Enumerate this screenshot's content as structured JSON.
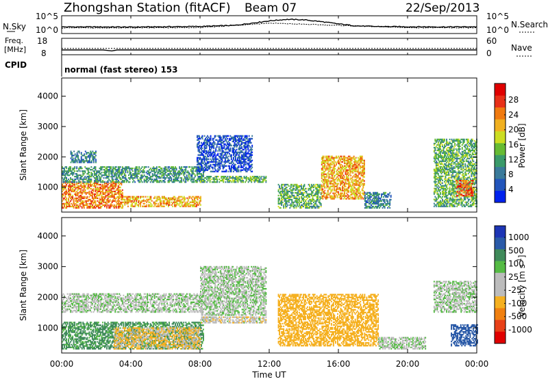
{
  "header": {
    "station": "Zhongshan Station (fitACF)",
    "beam": "Beam 07",
    "date": "22/Sep/2013"
  },
  "noise_panel": {
    "left_label": "N.Sky",
    "left_ticks": [
      "10^5",
      "10^0"
    ],
    "right_ticks": [
      "10^5",
      "10^0"
    ],
    "right_label": "N.Search",
    "right_label_style": "dotted"
  },
  "freq_panel": {
    "left_label": "Freq.",
    "left_unit": "[MHz]",
    "left_ticks": [
      "18",
      "8"
    ],
    "right_ticks": [
      "60",
      "0"
    ],
    "right_label": "Nave",
    "right_label_style": "dotted"
  },
  "cpid": {
    "label": "CPID",
    "text": "normal (fast stereo) 153"
  },
  "axes": {
    "y_label": "Slant Range [km]",
    "y_ticks": [
      "1000",
      "2000",
      "3000",
      "4000"
    ],
    "x_label": "Time UT",
    "x_ticks": [
      "00:00",
      "04:00",
      "08:00",
      "12:00",
      "16:00",
      "20:00",
      "00:00"
    ]
  },
  "colorbars": {
    "power": {
      "label": "Power [dB]",
      "ticks": [
        "4",
        "8",
        "12",
        "16",
        "20",
        "24",
        "28"
      ],
      "colors": [
        "#0022ee",
        "#2255bb",
        "#3a7a9a",
        "#3a9a6a",
        "#66bb33",
        "#ccdd22",
        "#f0b020",
        "#f07a10",
        "#e83018",
        "#e00000"
      ]
    },
    "velocity": {
      "label": "Velocity [m s",
      "label_sup": "-1",
      "label_end": "]",
      "ticks": [
        "1000",
        "500",
        "100",
        "25",
        "-25",
        "-100",
        "-500",
        "-1000"
      ],
      "colors": [
        "#1d35b5",
        "#2a5aa8",
        "#3f8a5a",
        "#55bb44",
        "#bcbcbc",
        "#bcbcbc",
        "#f5b020",
        "#f08010",
        "#e84018",
        "#e00000"
      ]
    }
  },
  "chart_data": [
    {
      "type": "line",
      "title": "N.Sky / N.Search",
      "x_range": [
        "00:00",
        "24:00"
      ],
      "y_scale": "log",
      "y_ticks": [
        "10^0",
        "10^5"
      ],
      "series": [
        {
          "name": "N.Sky",
          "x_hours": [
            0,
            2,
            4,
            6,
            8,
            10,
            11,
            12,
            13,
            14,
            15,
            16,
            17,
            18,
            20,
            22,
            24
          ],
          "y_level": [
            0.35,
            0.35,
            0.34,
            0.36,
            0.38,
            0.45,
            0.6,
            0.75,
            0.85,
            0.82,
            0.7,
            0.55,
            0.42,
            0.38,
            0.36,
            0.35,
            0.36
          ]
        },
        {
          "name": "N.Search",
          "x_hours": [
            0,
            4,
            8,
            12,
            16,
            20,
            24
          ],
          "y_level": [
            0.28,
            0.28,
            0.3,
            0.6,
            0.45,
            0.3,
            0.28
          ]
        }
      ]
    },
    {
      "type": "line",
      "title": "Freq / Nave",
      "x_range": [
        "00:00",
        "24:00"
      ],
      "series": [
        {
          "name": "Freq",
          "x_hours": [
            0,
            2.4,
            2.6,
            2.9,
            3.2,
            24
          ],
          "y": [
            10.5,
            10.5,
            10.2,
            9.8,
            10.5,
            10.5
          ]
        },
        {
          "name": "Nave",
          "x_hours": [
            0,
            24
          ],
          "y": [
            22,
            22
          ]
        }
      ]
    },
    {
      "type": "heatmap",
      "title": "Power",
      "x_range_hours": [
        0,
        24
      ],
      "y_range_km": [
        180,
        4600
      ],
      "value_unit": "dB",
      "regions": [
        {
          "t0": 0.0,
          "t1": 3.5,
          "r0": 300,
          "r1": 1200,
          "v": 24
        },
        {
          "t0": 3.5,
          "t1": 8.0,
          "r0": 350,
          "r1": 700,
          "v": 22
        },
        {
          "t0": 0.0,
          "t1": 8.2,
          "r0": 1150,
          "r1": 1650,
          "v": 12
        },
        {
          "t0": 0.5,
          "t1": 2.0,
          "r0": 1800,
          "r1": 2200,
          "v": 10
        },
        {
          "t0": 7.8,
          "t1": 11.0,
          "r0": 1500,
          "r1": 2700,
          "v": 6
        },
        {
          "t0": 8.0,
          "t1": 11.8,
          "r0": 1150,
          "r1": 1350,
          "v": 14
        },
        {
          "t0": 12.5,
          "t1": 15.0,
          "r0": 300,
          "r1": 1100,
          "v": 14
        },
        {
          "t0": 15.0,
          "t1": 17.5,
          "r0": 600,
          "r1": 2000,
          "v": 22
        },
        {
          "t0": 17.5,
          "t1": 19.0,
          "r0": 300,
          "r1": 800,
          "v": 10
        },
        {
          "t0": 21.5,
          "t1": 24.0,
          "r0": 350,
          "r1": 2600,
          "v": 14
        },
        {
          "t0": 22.8,
          "t1": 23.8,
          "r0": 700,
          "r1": 1200,
          "v": 26
        }
      ]
    },
    {
      "type": "heatmap",
      "title": "Velocity",
      "x_range_hours": [
        0,
        24
      ],
      "y_range_km": [
        180,
        4600
      ],
      "value_unit": "m/s",
      "regions": [
        {
          "t0": 0.0,
          "t1": 8.2,
          "r0": 300,
          "r1": 1200,
          "v": 150
        },
        {
          "t0": 3.0,
          "t1": 8.0,
          "r0": 300,
          "r1": 1000,
          "v": -120
        },
        {
          "t0": 0.0,
          "t1": 8.2,
          "r0": 1500,
          "r1": 2100,
          "v": 0
        },
        {
          "t0": 8.0,
          "t1": 11.8,
          "r0": 1400,
          "r1": 3000,
          "v": 0
        },
        {
          "t0": 8.0,
          "t1": 11.8,
          "r0": 1150,
          "r1": 1350,
          "v": -50
        },
        {
          "t0": 12.5,
          "t1": 18.3,
          "r0": 400,
          "r1": 2100,
          "v": -200
        },
        {
          "t0": 18.3,
          "t1": 21.0,
          "r0": 300,
          "r1": 700,
          "v": 0
        },
        {
          "t0": 21.5,
          "t1": 24.0,
          "r0": 1500,
          "r1": 2500,
          "v": 0
        },
        {
          "t0": 22.5,
          "t1": 24.0,
          "r0": 400,
          "r1": 1100,
          "v": 600
        }
      ]
    }
  ]
}
